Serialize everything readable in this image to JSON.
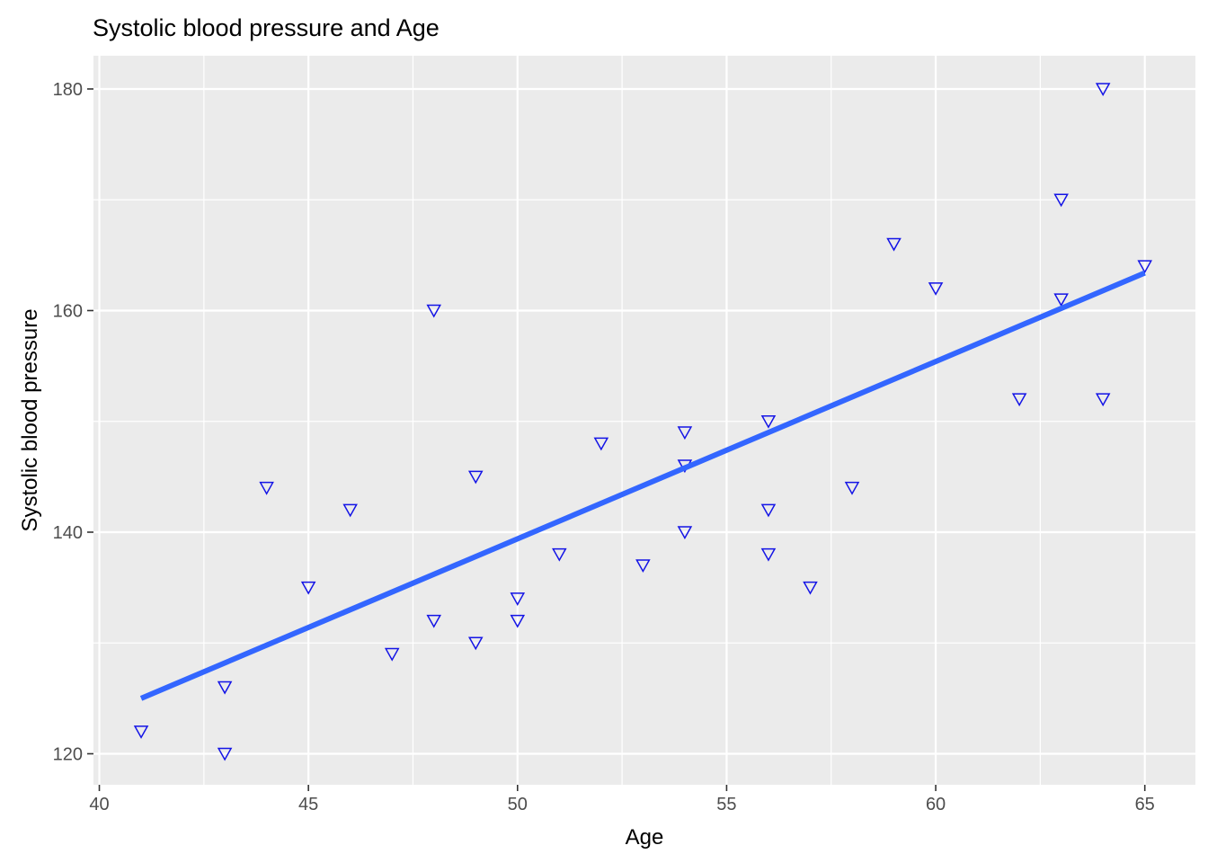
{
  "title": "Systolic blood pressure and Age",
  "chart_data": {
    "type": "scatter",
    "title": "Systolic blood pressure and Age",
    "xlabel": "Age",
    "ylabel": "Systolic blood pressure",
    "legend": "none",
    "grid": true,
    "marker_style": "open-triangle-down",
    "x_domain": [
      39.86,
      66.21
    ],
    "y_domain": [
      117.2,
      183.0
    ],
    "x_ticks": [
      40,
      45,
      50,
      55,
      60,
      65
    ],
    "x_minor_ticks": [
      42.5,
      47.5,
      52.5,
      57.5,
      62.5
    ],
    "y_ticks": [
      120,
      140,
      160,
      180
    ],
    "y_minor_ticks": [
      130,
      150,
      170
    ],
    "points": [
      [
        41,
        122
      ],
      [
        43,
        120
      ],
      [
        43,
        126
      ],
      [
        44,
        144
      ],
      [
        45,
        135
      ],
      [
        46,
        142
      ],
      [
        47,
        129
      ],
      [
        48,
        132
      ],
      [
        48,
        160
      ],
      [
        49,
        130
      ],
      [
        49,
        145
      ],
      [
        50,
        132
      ],
      [
        50,
        134
      ],
      [
        51,
        138
      ],
      [
        52,
        148
      ],
      [
        53,
        137
      ],
      [
        54,
        140
      ],
      [
        54,
        146
      ],
      [
        54,
        149
      ],
      [
        56,
        138
      ],
      [
        56,
        142
      ],
      [
        56,
        150
      ],
      [
        57,
        135
      ],
      [
        58,
        144
      ],
      [
        59,
        166
      ],
      [
        60,
        162
      ],
      [
        62,
        152
      ],
      [
        63,
        161
      ],
      [
        63,
        170
      ],
      [
        64,
        152
      ],
      [
        64,
        180
      ],
      [
        65,
        164
      ]
    ],
    "trend_line": {
      "x1": 41,
      "y1": 125.0,
      "x2": 65,
      "y2": 163.4
    },
    "colors": {
      "point": "#1414E6",
      "trend": "#3366FF",
      "panel": "#EBEBEB",
      "grid": "#FFFFFF",
      "tick_label": "#4D4D4D",
      "tick_mark": "#333333",
      "title": "#000000"
    }
  }
}
